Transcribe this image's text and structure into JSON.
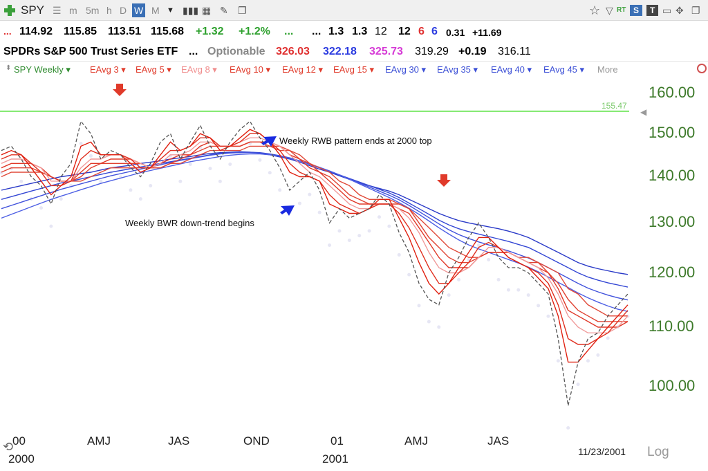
{
  "toolbar": {
    "symbol": "SPY",
    "timeframes": [
      "m",
      "5m",
      "h",
      "D",
      "W",
      "M"
    ],
    "active_timeframe": "W",
    "right_labels": {
      "rt": "RT",
      "s": "S",
      "t": "T"
    }
  },
  "quote_row1": {
    "dots": "...",
    "open": "114.92",
    "high": "115.85",
    "low": "113.51",
    "close": "115.68",
    "change": "+1.32",
    "change_pct": "+1.2%",
    "dots2": "...",
    "dots3": "...",
    "v1": "1.3",
    "v2": "1.3",
    "v3": "12",
    "v4": "12",
    "v5": "6",
    "v6": "6",
    "v7": "0.31",
    "v8": "+11.69"
  },
  "quote_row2": {
    "name": "SPDRs S&P 500 Trust Series ETF",
    "dots": "...",
    "optionable": "Optionable",
    "p1": "326.03",
    "p2": "322.18",
    "p3": "325.73",
    "p4": "319.29",
    "p5": "+0.19",
    "p6": "316.11"
  },
  "legend": {
    "items": [
      {
        "label": "SPY Weekly",
        "color": "#2e8b2e"
      },
      {
        "label": "EAvg 3",
        "color": "#e03a2a"
      },
      {
        "label": "EAvg 5",
        "color": "#e03a2a"
      },
      {
        "label": "EAvg 8",
        "color": "#f08d8d"
      },
      {
        "label": "EAvg 10",
        "color": "#e03a2a"
      },
      {
        "label": "EAvg 12",
        "color": "#e03a2a"
      },
      {
        "label": "EAvg 15",
        "color": "#e03a2a"
      },
      {
        "label": "EAvg 30",
        "color": "#3b4fd6"
      },
      {
        "label": "EAvg 35",
        "color": "#3b4fd6"
      },
      {
        "label": "EAvg 40",
        "color": "#3b4fd6"
      },
      {
        "label": "EAvg 45",
        "color": "#3b4fd6"
      }
    ],
    "more": "More"
  },
  "annotations": {
    "rwb_end": "Weekly RWB pattern ends at 2000 top",
    "bwr_begin": "Weekly BWR down-trend begins"
  },
  "chart_data": {
    "type": "line",
    "scale": "log",
    "ylim": [
      93,
      165
    ],
    "yticks": [
      "160.00",
      "150.00",
      "140.00",
      "130.00",
      "120.00",
      "110.00",
      "100.00"
    ],
    "reference_line": {
      "value": 155.47,
      "label": "155.47",
      "color": "#7de86a"
    },
    "x_axis": {
      "labels": [
        "00",
        "AMJ",
        "JAS",
        "OND",
        "01",
        "AMJ",
        "JAS"
      ],
      "years": [
        "2000",
        "2001"
      ],
      "date_label": "11/23/2001",
      "scale_label": "Log"
    },
    "series": [
      {
        "name": "SPY Weekly",
        "values": [
          146,
          147,
          144,
          140,
          138,
          134,
          140,
          143,
          153,
          150,
          144,
          146,
          145,
          142,
          140,
          143,
          148,
          150,
          144,
          148,
          152,
          147,
          144,
          148,
          151,
          153,
          149,
          146,
          142,
          137,
          139,
          141,
          137,
          130,
          133,
          131,
          132,
          133,
          136,
          134,
          128,
          124,
          118,
          115,
          114,
          120,
          123,
          127,
          130,
          127,
          123,
          121,
          121,
          120,
          118,
          116,
          108,
          97,
          104,
          108,
          109,
          112,
          114,
          116
        ]
      },
      {
        "name": "EAvg 3",
        "values": [
          145,
          146,
          145,
          142,
          139,
          136,
          138,
          140,
          147,
          148,
          145,
          145,
          145,
          143,
          141,
          142,
          145,
          148,
          146,
          147,
          150,
          149,
          146,
          147,
          149,
          151,
          150,
          148,
          145,
          141,
          140,
          140,
          139,
          134,
          133,
          132,
          132,
          133,
          135,
          135,
          131,
          127,
          122,
          118,
          116,
          118,
          121,
          124,
          127,
          127,
          125,
          123,
          122,
          121,
          119,
          117,
          112,
          104,
          104,
          106,
          108,
          110,
          112,
          114
        ]
      },
      {
        "name": "EAvg 5",
        "values": [
          144,
          145,
          145,
          143,
          141,
          138,
          138,
          139,
          144,
          146,
          145,
          145,
          145,
          144,
          142,
          142,
          144,
          146,
          146,
          147,
          149,
          149,
          147,
          147,
          148,
          150,
          150,
          148,
          146,
          143,
          141,
          140,
          139,
          136,
          134,
          133,
          132,
          133,
          134,
          134,
          132,
          129,
          125,
          121,
          118,
          118,
          120,
          122,
          125,
          126,
          125,
          123,
          122,
          121,
          120,
          118,
          114,
          108,
          107,
          107,
          108,
          109,
          111,
          113
        ]
      },
      {
        "name": "EAvg 8",
        "values": [
          143,
          144,
          144,
          143,
          142,
          139,
          139,
          139,
          142,
          144,
          144,
          145,
          145,
          144,
          143,
          142,
          143,
          145,
          145,
          146,
          148,
          148,
          147,
          147,
          148,
          149,
          149,
          148,
          147,
          145,
          143,
          141,
          140,
          138,
          136,
          134,
          133,
          133,
          134,
          134,
          133,
          131,
          128,
          124,
          121,
          120,
          120,
          121,
          123,
          125,
          125,
          124,
          123,
          122,
          121,
          119,
          116,
          112,
          110,
          109,
          109,
          109,
          110,
          112
        ]
      },
      {
        "name": "EAvg 10",
        "values": [
          142,
          143,
          143,
          143,
          142,
          140,
          139,
          139,
          141,
          143,
          143,
          144,
          144,
          144,
          143,
          142,
          143,
          144,
          145,
          145,
          147,
          148,
          147,
          147,
          147,
          148,
          148,
          148,
          147,
          145,
          144,
          142,
          141,
          139,
          137,
          135,
          134,
          134,
          134,
          134,
          133,
          132,
          129,
          126,
          123,
          121,
          121,
          121,
          123,
          124,
          124,
          124,
          123,
          122,
          121,
          120,
          117,
          113,
          112,
          111,
          110,
          110,
          110,
          111
        ]
      },
      {
        "name": "EAvg 12",
        "values": [
          141,
          142,
          142,
          142,
          141,
          140,
          139,
          139,
          140,
          142,
          143,
          143,
          143,
          143,
          143,
          142,
          142,
          143,
          144,
          145,
          146,
          147,
          147,
          147,
          147,
          148,
          148,
          147,
          147,
          146,
          144,
          143,
          141,
          140,
          138,
          136,
          135,
          134,
          134,
          134,
          134,
          133,
          130,
          127,
          125,
          123,
          122,
          122,
          123,
          124,
          124,
          124,
          123,
          122,
          122,
          120,
          118,
          115,
          113,
          112,
          111,
          111,
          111,
          111
        ]
      },
      {
        "name": "EAvg 15",
        "values": [
          140,
          141,
          141,
          141,
          141,
          140,
          139,
          139,
          139,
          140,
          141,
          142,
          142,
          142,
          142,
          142,
          142,
          143,
          143,
          144,
          145,
          146,
          146,
          146,
          146,
          147,
          147,
          147,
          146,
          146,
          145,
          143,
          142,
          141,
          139,
          138,
          136,
          135,
          135,
          135,
          134,
          133,
          131,
          129,
          127,
          125,
          124,
          123,
          123,
          124,
          124,
          124,
          123,
          123,
          122,
          121,
          120,
          117,
          116,
          114,
          113,
          112,
          112,
          112
        ]
      },
      {
        "name": "EAvg 30",
        "values": [
          137,
          137.5,
          138,
          138.5,
          139,
          139.5,
          140,
          140.3,
          140.7,
          141,
          141.5,
          142,
          142.3,
          142.6,
          143,
          143.3,
          143.6,
          144,
          144.3,
          144.6,
          145,
          145.3,
          145.5,
          145.6,
          145.7,
          145.6,
          145.4,
          145,
          144.5,
          144,
          143.3,
          142.5,
          141.7,
          141,
          140.2,
          139.4,
          138.7,
          138,
          137.4,
          136.8,
          136,
          135,
          134,
          133,
          132,
          131.2,
          130.5,
          130,
          129.6,
          129.2,
          128.8,
          128.3,
          127.7,
          127,
          126,
          125,
          124,
          123,
          122,
          121.3,
          120.8,
          120.4,
          120,
          119.7
        ]
      },
      {
        "name": "EAvg 35",
        "values": [
          135,
          135.6,
          136.2,
          136.8,
          137.4,
          138,
          138.6,
          139,
          139.5,
          140,
          140.5,
          141,
          141.4,
          141.8,
          142.2,
          142.6,
          143,
          143.4,
          143.8,
          144.2,
          144.6,
          145,
          145.3,
          145.5,
          145.6,
          145.6,
          145.5,
          145.2,
          144.8,
          144.3,
          143.6,
          142.8,
          142,
          141.2,
          140.4,
          139.6,
          138.8,
          138,
          137.2,
          136.4,
          135.4,
          134.2,
          133,
          131.8,
          130.6,
          129.6,
          128.8,
          128.2,
          127.7,
          127.2,
          126.7,
          126.2,
          125.6,
          125,
          124,
          123,
          122,
          121,
          120,
          119.2,
          118.6,
          118.1,
          117.7,
          117.3
        ]
      },
      {
        "name": "EAvg 40",
        "values": [
          133,
          133.7,
          134.4,
          135.1,
          135.8,
          136.5,
          137.2,
          137.8,
          138.4,
          139,
          139.6,
          140.2,
          140.7,
          141.2,
          141.7,
          142.2,
          142.7,
          143.2,
          143.7,
          144.1,
          144.5,
          144.9,
          145.2,
          145.4,
          145.5,
          145.5,
          145.4,
          145.1,
          144.7,
          144.2,
          143.6,
          142.9,
          142.1,
          141.3,
          140.4,
          139.5,
          138.6,
          137.7,
          136.8,
          135.9,
          134.9,
          133.7,
          132.4,
          131.1,
          129.8,
          128.6,
          127.6,
          126.8,
          126.1,
          125.5,
          124.9,
          124.3,
          123.6,
          122.9,
          122,
          121,
          120,
          119,
          118,
          117.1,
          116.4,
          115.8,
          115.3,
          114.9
        ]
      },
      {
        "name": "EAvg 45",
        "values": [
          131,
          131.8,
          132.6,
          133.4,
          134.2,
          135,
          135.7,
          136.4,
          137.1,
          137.8,
          138.5,
          139.1,
          139.7,
          140.3,
          140.9,
          141.4,
          141.9,
          142.4,
          142.9,
          143.4,
          143.8,
          144.2,
          144.6,
          144.9,
          145.1,
          145.2,
          145.2,
          145,
          144.7,
          144.2,
          143.6,
          142.9,
          142.1,
          141.3,
          140.4,
          139.4,
          138.4,
          137.4,
          136.4,
          135.4,
          134.3,
          133.1,
          131.8,
          130.4,
          129,
          127.7,
          126.5,
          125.5,
          124.7,
          124,
          123.3,
          122.6,
          121.9,
          121.1,
          120.2,
          119.2,
          118.2,
          117.2,
          116.2,
          115.3,
          114.5,
          113.8,
          113.2,
          112.8
        ]
      }
    ],
    "series_colors": [
      "#555555",
      "#e02010",
      "#e03020",
      "#f09a9a",
      "#e03828",
      "#e04232",
      "#e04a3a",
      "#2a3ac8",
      "#3447d4",
      "#4152dc",
      "#4d5fe4"
    ]
  }
}
